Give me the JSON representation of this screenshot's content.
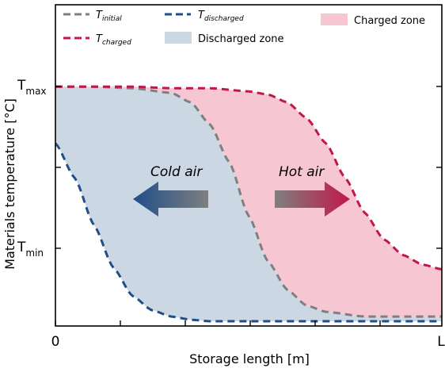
{
  "chart_data": {
    "type": "area",
    "xlabel": "Storage length [m]",
    "ylabel": "Materials temperature  [°C]",
    "x_ticks": [
      {
        "label": "0",
        "pos": 0
      },
      {
        "label": "L",
        "pos": 1
      }
    ],
    "y_ticks": [
      {
        "main": "T",
        "sub": "max",
        "pos": 1
      },
      {
        "main": "T",
        "sub": "min",
        "pos": 0
      }
    ],
    "xlim": [
      0,
      1
    ],
    "ylim": [
      -0.52,
      1.52
    ],
    "series": [
      {
        "name_main": "T",
        "name_sub": "initial",
        "color": "#7f7f7f",
        "style": "dashed",
        "x": [
          0,
          0.1,
          0.2,
          0.3,
          0.35,
          0.4,
          0.45,
          0.5,
          0.55,
          0.6,
          0.65,
          0.7,
          0.8,
          0.9,
          1.0
        ],
        "values": [
          1.0,
          1.0,
          0.99,
          0.96,
          0.9,
          0.76,
          0.52,
          0.18,
          -0.11,
          -0.29,
          -0.39,
          -0.43,
          -0.46,
          -0.46,
          -0.46
        ]
      },
      {
        "name_main": "T",
        "name_sub": "charged",
        "color": "#c1184a",
        "style": "dashed",
        "x": [
          0,
          0.1,
          0.2,
          0.3,
          0.4,
          0.5,
          0.55,
          0.6,
          0.65,
          0.7,
          0.75,
          0.8,
          0.85,
          0.9,
          0.95,
          1.0
        ],
        "values": [
          1.0,
          1.0,
          1.0,
          0.99,
          0.99,
          0.97,
          0.95,
          0.9,
          0.8,
          0.64,
          0.42,
          0.2,
          0.03,
          -0.07,
          -0.13,
          -0.16
        ]
      },
      {
        "name_main": "T",
        "name_sub": "discharged",
        "color": "#1f4e89",
        "style": "dashed",
        "x": [
          0,
          0.05,
          0.1,
          0.15,
          0.2,
          0.25,
          0.3,
          0.35,
          0.4,
          0.5,
          0.6,
          0.8,
          1.0
        ],
        "values": [
          0.64,
          0.42,
          0.12,
          -0.15,
          -0.33,
          -0.42,
          -0.46,
          -0.48,
          -0.49,
          -0.49,
          -0.49,
          -0.49,
          -0.49
        ]
      }
    ],
    "zones": [
      {
        "name": "Discharged zone",
        "color": "#ccd7e4",
        "between": [
          "T_discharged",
          "T_initial"
        ]
      },
      {
        "name": "Charged zone",
        "color": "#f6c7d3",
        "between": [
          "T_initial",
          "T_charged"
        ]
      }
    ],
    "annotations": [
      {
        "text": "Cold air",
        "arrow": "left",
        "color_from": "#7f7f7f",
        "color_to": "#1f4e89"
      },
      {
        "text": "Hot air",
        "arrow": "right",
        "color_from": "#7f7f7f",
        "color_to": "#c1184a"
      }
    ],
    "legend_position": "top"
  }
}
